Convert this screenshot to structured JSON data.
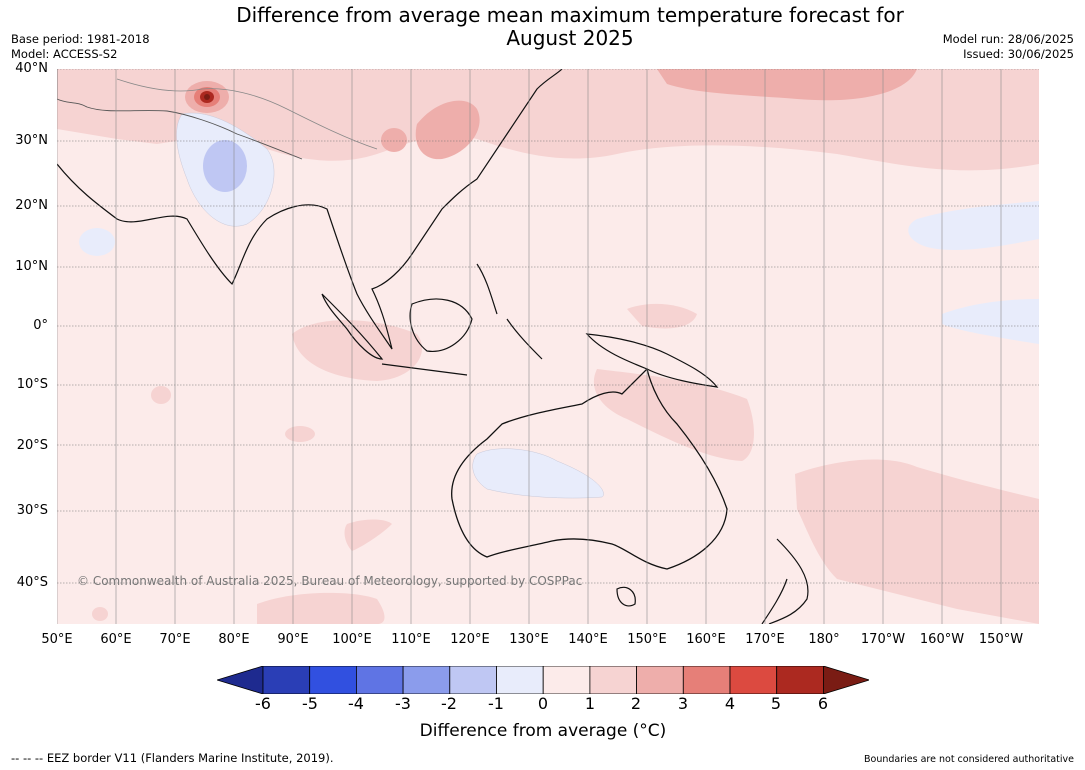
{
  "title_line1": "Difference from average mean maximum temperature forecast for",
  "title_line2": "August 2025",
  "meta_left": {
    "base_period": "Base period: 1981-2018",
    "model": "Model: ACCESS-S2"
  },
  "meta_right": {
    "model_run": "Model run: 28/06/2025",
    "issued": "Issued: 30/06/2025"
  },
  "lat_labels": [
    "40°N",
    "30°N",
    "20°N",
    "10°N",
    "0°",
    "10°S",
    "20°S",
    "30°S",
    "40°S"
  ],
  "lon_labels": [
    "50°E",
    "60°E",
    "70°E",
    "80°E",
    "90°E",
    "100°E",
    "110°E",
    "120°E",
    "130°E",
    "140°E",
    "150°E",
    "160°E",
    "170°E",
    "180°",
    "170°W",
    "160°W",
    "150°W"
  ],
  "copyright": "© Commonwealth of Australia 2025, Bureau of Meteorology, supported by COSPPac",
  "colorbar": {
    "ticks": [
      "-6",
      "-5",
      "-4",
      "-3",
      "-2",
      "-1",
      "0",
      "1",
      "2",
      "3",
      "4",
      "5",
      "6"
    ],
    "colors": [
      "#1e2a8f",
      "#2a3eb6",
      "#3150e0",
      "#5f74e4",
      "#8b9cec",
      "#bfc7f3",
      "#e8ecfb",
      "#fcebea",
      "#f6d3d2",
      "#eeaeab",
      "#e67f78",
      "#dc4a40",
      "#ac2920",
      "#7a1c14"
    ],
    "title": "Difference from average (°C)"
  },
  "footer_left": "--  --  -- EEZ border V11 (Flanders Marine Institute, 2019).",
  "footer_right": "Boundaries are not considered authoritative"
}
